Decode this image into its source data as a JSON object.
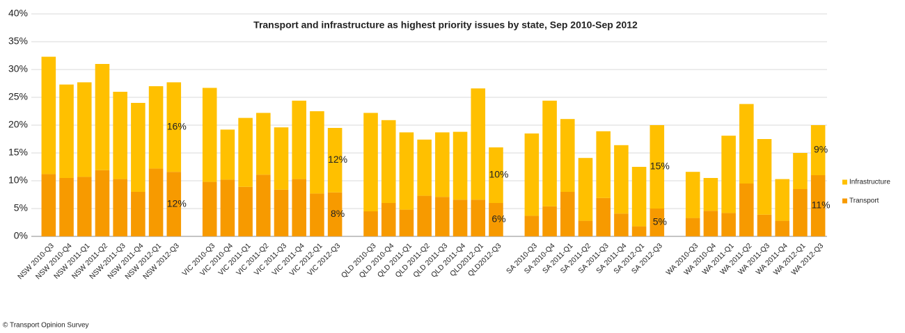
{
  "chart_data": {
    "type": "stacked_bar",
    "title": "Transport and infrastructure  as highest priority issues by state, Sep 2010-Sep 2012",
    "source": "© Transport Opinion Survey",
    "categories": [
      "NSW 2010-Q3",
      "NSW 2010-Q4",
      "NSW 2011-Q1",
      "NSW 2011-Q2",
      "NSW-2011-Q3",
      "NSW 2011-Q4",
      "NSW 2012-Q1",
      "NSW 2012-Q3",
      null,
      "VIC 2010-Q3",
      "VIC 2010-Q4",
      "VIC 2011-Q1",
      "VIC 2011-Q2",
      "VIC 2011-Q3",
      "VIC 2011-Q4",
      "VIC 2012-Q1",
      "VIC 2012-Q3",
      null,
      "QLD 2010-Q3",
      "QLD 2010-Q4",
      "QLD 2011-Q1",
      "QLD 2011-Q2",
      "QLD 2011-Q3",
      "QLD 2011-Q4",
      "QLD2012-Q1",
      "QLD2012-Q3",
      null,
      "SA 2010-Q3",
      "SA 2010-Q4",
      "SA 2011-Q1",
      "SA 2011-Q2",
      "SA 2011-Q3",
      "SA 2011-Q4",
      "SA 2012-Q1",
      "SA 2012-Q3",
      null,
      "WA 2010-Q3",
      "WA 2010-Q4",
      "WA 2011-Q1",
      "WA 2011-Q2",
      "WA 2011-Q3",
      "WA 2011-Q4",
      "WA 2012-Q1",
      "WA 2012-Q3"
    ],
    "series": [
      {
        "name": "Transport",
        "color": "#f79a00",
        "values": [
          11.2,
          10.5,
          10.7,
          11.9,
          10.3,
          8,
          12.2,
          11.6,
          null,
          9.8,
          10.2,
          8.9,
          11.1,
          8.4,
          10.3,
          7.7,
          7.9,
          null,
          4.5,
          6,
          4.8,
          7.3,
          7.1,
          6.6,
          6.6,
          6,
          null,
          3.7,
          5.4,
          8,
          2.8,
          6.9,
          4.1,
          1.8,
          5,
          null,
          3.3,
          4.6,
          4.2,
          9.5,
          3.9,
          2.8,
          8.5,
          11
        ],
        "value_labels": [
          null,
          null,
          null,
          null,
          null,
          null,
          null,
          "12%",
          null,
          null,
          null,
          null,
          null,
          null,
          null,
          null,
          "8%",
          null,
          null,
          null,
          null,
          null,
          null,
          null,
          null,
          "6%",
          null,
          null,
          null,
          null,
          null,
          null,
          null,
          null,
          "5%",
          null,
          null,
          null,
          null,
          null,
          null,
          null,
          null,
          "11%"
        ]
      },
      {
        "name": "Infrastructure",
        "color": "#ffc000",
        "values": [
          21.1,
          16.8,
          17,
          19.1,
          15.7,
          16,
          14.8,
          16.1,
          null,
          16.9,
          9,
          12.4,
          11.1,
          11.2,
          14.1,
          14.8,
          11.6,
          null,
          17.7,
          14.9,
          13.9,
          10.1,
          11.6,
          12.2,
          20,
          10,
          null,
          14.8,
          19,
          13.1,
          11.3,
          12,
          12.3,
          10.7,
          15,
          null,
          8.3,
          5.9,
          13.9,
          14.3,
          13.6,
          7.5,
          6.5,
          9
        ],
        "value_labels": [
          null,
          null,
          null,
          null,
          null,
          null,
          null,
          "16%",
          null,
          null,
          null,
          null,
          null,
          null,
          null,
          null,
          "12%",
          null,
          null,
          null,
          null,
          null,
          null,
          null,
          null,
          "10%",
          null,
          null,
          null,
          null,
          null,
          null,
          null,
          null,
          "15%",
          null,
          null,
          null,
          null,
          null,
          null,
          null,
          null,
          "9%"
        ]
      }
    ],
    "ylim": [
      0,
      40
    ],
    "yticks": [
      {
        "value": 0,
        "label": "0%"
      },
      {
        "value": 5,
        "label": "5%"
      },
      {
        "value": 10,
        "label": "10%"
      },
      {
        "value": 15,
        "label": "15%"
      },
      {
        "value": 20,
        "label": "20%"
      },
      {
        "value": 25,
        "label": "25%"
      },
      {
        "value": 30,
        "label": "30%"
      },
      {
        "value": 35,
        "label": "35%"
      },
      {
        "value": 40,
        "label": "40%"
      }
    ],
    "grid": true,
    "legend": "right"
  }
}
